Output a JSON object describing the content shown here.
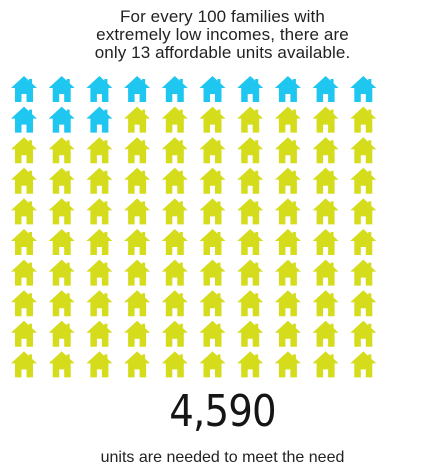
{
  "headline": {
    "line1": "For every 100 families with",
    "line2": "extremely low incomes, there are",
    "line3": "only 13 affordable units available."
  },
  "chart_data": {
    "type": "pictogram",
    "total": 100,
    "columns": 10,
    "rows": 10,
    "series": [
      {
        "value": 13,
        "color": "#1fc6f0"
      },
      {
        "value": 87,
        "color": "#d4dc1c"
      }
    ],
    "icon": "house-icon"
  },
  "stat": {
    "value": "4,590",
    "caption": "units are needed to meet the need"
  }
}
